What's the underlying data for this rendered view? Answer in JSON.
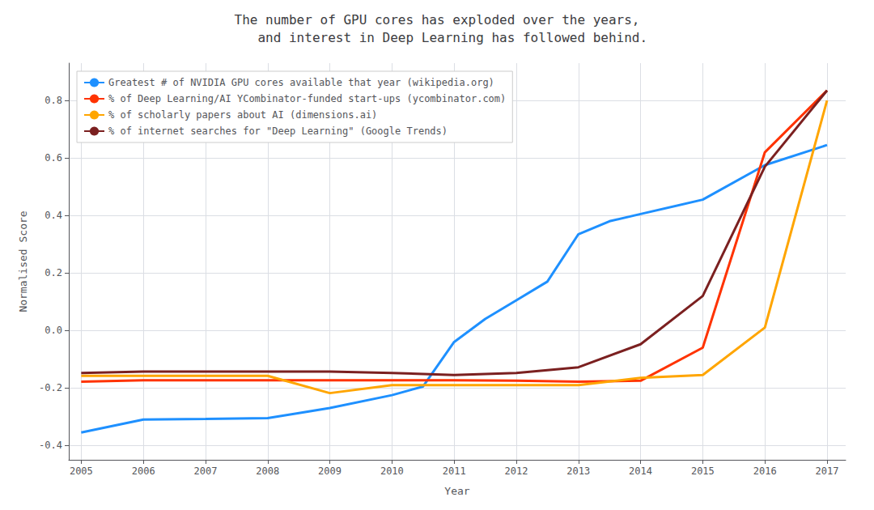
{
  "chart_data": {
    "type": "line",
    "title": "The number of GPU cores has exploded over the years,\n    and interest in Deep Learning has followed behind.",
    "xlabel": "Year",
    "ylabel": "Normalised Score",
    "xlim": [
      2004.8,
      2017.3
    ],
    "ylim": [
      -0.45,
      0.93
    ],
    "xticks": [
      2005,
      2006,
      2007,
      2008,
      2009,
      2010,
      2011,
      2012,
      2013,
      2014,
      2015,
      2016,
      2017
    ],
    "yticks": [
      -0.4,
      -0.2,
      {
        "value": 0.0,
        "label": "0.0"
      },
      0.2,
      0.4,
      0.6,
      0.8
    ],
    "grid": true,
    "legend": "upper left",
    "series": [
      {
        "name": "Greatest # of NVIDIA GPU cores available that year (wikipedia.org)",
        "color": "#1e90ff",
        "x": [
          2005,
          2006,
          2007,
          2008,
          2009,
          2010,
          2010.5,
          2011,
          2011.5,
          2012,
          2012.5,
          2013,
          2013.5,
          2014,
          2015,
          2016,
          2017
        ],
        "values": [
          -0.355,
          -0.31,
          -0.308,
          -0.305,
          -0.27,
          -0.225,
          -0.195,
          -0.04,
          0.04,
          0.105,
          0.17,
          0.335,
          0.38,
          0.405,
          0.455,
          0.575,
          0.645
        ]
      },
      {
        "name": "% of Deep Learning/AI YCombinator-funded start-ups (ycombinator.com)",
        "color": "#ff3300",
        "x": [
          2005,
          2006,
          2007,
          2008,
          2009,
          2010,
          2011,
          2012,
          2013,
          2014,
          2015,
          2016,
          2017
        ],
        "values": [
          -0.178,
          -0.173,
          -0.173,
          -0.173,
          -0.173,
          -0.173,
          -0.173,
          -0.175,
          -0.178,
          -0.175,
          -0.06,
          0.62,
          0.835
        ]
      },
      {
        "name": "% of scholarly papers about AI (dimensions.ai)",
        "color": "#ffa500",
        "x": [
          2005,
          2006,
          2007,
          2008,
          2009,
          2010,
          2011,
          2012,
          2013,
          2014,
          2015,
          2016,
          2017
        ],
        "values": [
          -0.158,
          -0.158,
          -0.158,
          -0.158,
          -0.218,
          -0.19,
          -0.19,
          -0.19,
          -0.19,
          -0.165,
          -0.155,
          0.01,
          0.8
        ]
      },
      {
        "name": "% of internet searches for \"Deep Learning\" (Google Trends)",
        "color": "#7b2020",
        "x": [
          2005,
          2006,
          2007,
          2008,
          2009,
          2010,
          2011,
          2012,
          2013,
          2014,
          2015,
          2016,
          2017
        ],
        "values": [
          -0.148,
          -0.143,
          -0.143,
          -0.143,
          -0.143,
          -0.148,
          -0.155,
          -0.148,
          -0.128,
          -0.048,
          0.12,
          0.57,
          0.835
        ]
      }
    ]
  }
}
